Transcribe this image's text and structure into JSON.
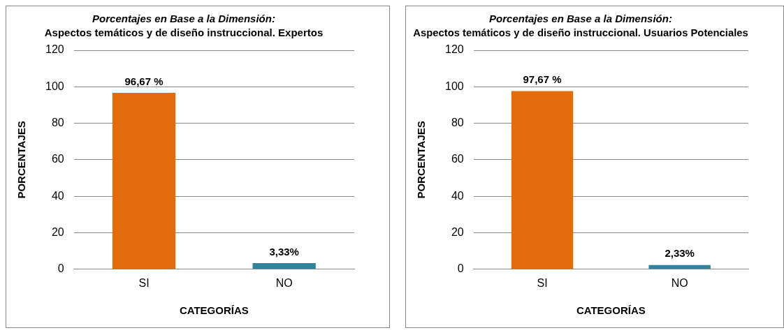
{
  "chart_data": [
    {
      "type": "bar",
      "title": "Porcentajes en Base a la Dimensión:",
      "subtitle": "Aspectos temáticos y de diseño instruccional. Expertos",
      "xlabel": "CATEGORÍAS",
      "ylabel": "PORCENTAJES",
      "categories": [
        "SI",
        "NO"
      ],
      "values": [
        96.67,
        3.33
      ],
      "colors": [
        "#e36c0a",
        "#31849b"
      ],
      "value_labels": [
        "96,67 %",
        "3,33%"
      ],
      "ylim": [
        0,
        120
      ],
      "yticks": [
        0,
        20,
        40,
        60,
        80,
        100,
        120
      ],
      "grid": "y",
      "legend": false
    },
    {
      "type": "bar",
      "title": "Porcentajes en Base a la Dimensión:",
      "subtitle": "Aspectos temáticos y de diseño instruccional. Usuarios Potenciales",
      "xlabel": "CATEGORÍAS",
      "ylabel": "PORCENTAJES",
      "categories": [
        "SI",
        "NO"
      ],
      "values": [
        97.67,
        2.33
      ],
      "colors": [
        "#e36c0a",
        "#31849b"
      ],
      "value_labels": [
        "97,67 %",
        "2,33%"
      ],
      "ylim": [
        0,
        120
      ],
      "yticks": [
        0,
        20,
        40,
        60,
        80,
        100,
        120
      ],
      "grid": "y",
      "legend": false
    }
  ]
}
